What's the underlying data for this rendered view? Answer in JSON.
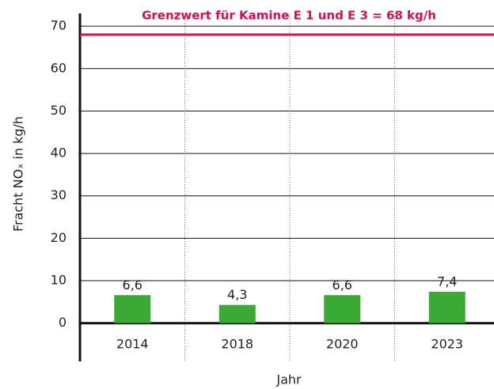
{
  "chart_data": {
    "type": "bar",
    "categories": [
      "2014",
      "2018",
      "2020",
      "2023"
    ],
    "values": [
      6.6,
      4.3,
      6.6,
      7.4
    ],
    "value_labels": [
      "6,6",
      "4,3",
      "6,6",
      "7,4"
    ],
    "color": "#3aaa35",
    "ylim": [
      -9,
      73
    ],
    "yticks": [
      0,
      10,
      20,
      30,
      40,
      50,
      60,
      70
    ],
    "grid": true,
    "y_label": "Fracht NOₓ in kg/h",
    "x_label": "Jahr",
    "reference_line": {
      "value": 68,
      "color": "#d40e4f",
      "label": "Grenzwert für Kamine E 1 und E 3 = 68 kg/h"
    }
  }
}
